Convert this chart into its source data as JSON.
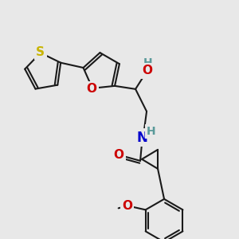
{
  "bg_color": "#e8e8e8",
  "bond_color": "#1a1a1a",
  "bond_width": 1.5,
  "atom_colors": {
    "S": "#c8b400",
    "O": "#cc0000",
    "N": "#0000cc",
    "H_teal": "#5a9a9a",
    "C": "#1a1a1a"
  },
  "fig_size": [
    3.0,
    3.0
  ],
  "dpi": 100
}
